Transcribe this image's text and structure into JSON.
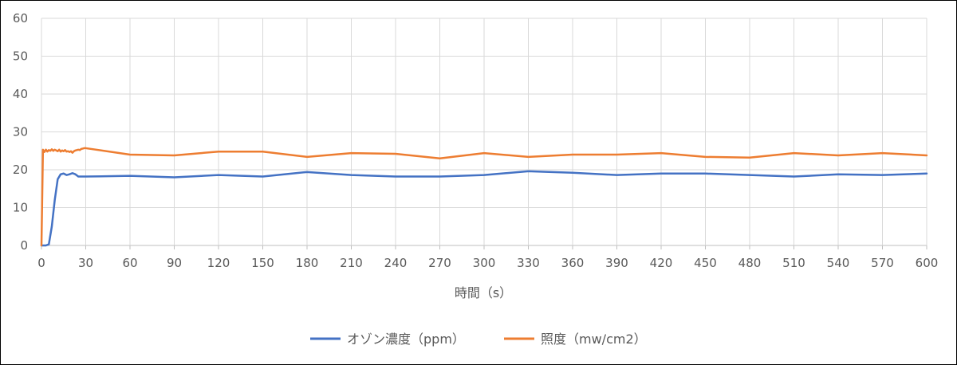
{
  "chart_data": {
    "type": "line",
    "xlabel": "時間（s）",
    "ylabel": "",
    "xlim": [
      0,
      600
    ],
    "ylim": [
      0,
      60
    ],
    "x_ticks": [
      0,
      30,
      60,
      90,
      120,
      150,
      180,
      210,
      240,
      270,
      300,
      330,
      360,
      390,
      420,
      450,
      480,
      510,
      540,
      570,
      600
    ],
    "y_ticks": [
      0,
      10,
      20,
      30,
      40,
      50,
      60
    ],
    "grid": true,
    "legend_position": "bottom",
    "series": [
      {
        "name": "オゾン濃度（ppm）",
        "color": "#4472C4",
        "x": [
          0,
          3,
          5,
          7,
          9,
          11,
          13,
          15,
          17,
          19,
          21,
          23,
          25,
          30,
          60,
          90,
          120,
          150,
          180,
          210,
          240,
          270,
          300,
          330,
          360,
          390,
          420,
          450,
          480,
          510,
          540,
          570,
          600
        ],
        "y": [
          0,
          0,
          0.3,
          5,
          12,
          17.5,
          18.8,
          19,
          18.6,
          18.8,
          19.1,
          18.8,
          18.2,
          18.2,
          18.4,
          18,
          18.6,
          18.2,
          19.4,
          18.6,
          18.2,
          18.2,
          18.6,
          19.6,
          19.2,
          18.6,
          19,
          19,
          18.6,
          18.2,
          18.8,
          18.6,
          19
        ]
      },
      {
        "name": "照度（mw/cm2）",
        "color": "#ED7D31",
        "x": [
          0,
          1,
          2,
          3,
          4,
          5,
          6,
          7,
          8,
          9,
          10,
          11,
          12,
          13,
          14,
          15,
          16,
          17,
          18,
          19,
          20,
          21,
          22,
          23,
          24,
          25,
          26,
          27,
          28,
          29,
          30,
          60,
          90,
          120,
          150,
          180,
          210,
          240,
          270,
          300,
          330,
          360,
          390,
          420,
          450,
          480,
          510,
          540,
          570,
          600
        ],
        "y": [
          0,
          25.3,
          24.7,
          25.3,
          24.8,
          25.2,
          25,
          25.4,
          25,
          25.3,
          25.1,
          24.9,
          25.3,
          24.8,
          25.1,
          24.9,
          25.2,
          24.8,
          24.9,
          24.7,
          24.9,
          24.5,
          24.9,
          25.1,
          25.2,
          25.3,
          25.2,
          25.5,
          25.6,
          25.7,
          25.7,
          24,
          23.8,
          24.8,
          24.8,
          23.4,
          24.4,
          24.2,
          23,
          24.4,
          23.4,
          24,
          24,
          24.4,
          23.4,
          23.2,
          24.4,
          23.8,
          24.4,
          23.8
        ]
      }
    ]
  }
}
